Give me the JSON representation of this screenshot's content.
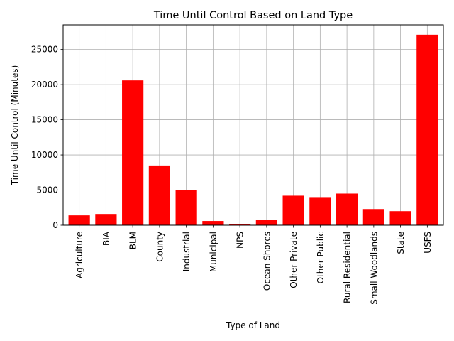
{
  "chart_data": {
    "type": "bar",
    "title": "Time Until Control Based on Land Type",
    "xlabel": "Type of Land",
    "ylabel": "Time Until Control (Minutes)",
    "categories": [
      "Agriculture",
      "BIA",
      "BLM",
      "County",
      "Industrial",
      "Municipal",
      "NPS",
      "Ocean Shores",
      "Other Private",
      "Other Public",
      "Rural Residential",
      "Small Woodlands",
      "State",
      "USFS"
    ],
    "values": [
      1400,
      1600,
      20600,
      8500,
      5000,
      600,
      100,
      800,
      4200,
      3900,
      4500,
      2300,
      2000,
      27100
    ],
    "ylim": [
      0,
      28500
    ],
    "yticks": [
      0,
      5000,
      10000,
      15000,
      20000,
      25000
    ],
    "grid": true,
    "bar_color": "#ff0000"
  }
}
